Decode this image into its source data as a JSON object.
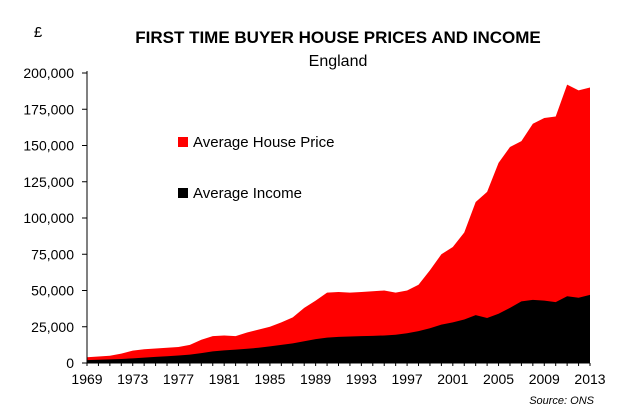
{
  "chart_data": {
    "type": "area",
    "title": "FIRST TIME BUYER HOUSE PRICES AND INCOME",
    "subtitle": "England",
    "y_unit": "£",
    "source": "Source: ONS",
    "xlim": [
      1969,
      2013
    ],
    "ylim": [
      0,
      200000
    ],
    "x_ticks": [
      "1969",
      "1973",
      "1977",
      "1981",
      "1985",
      "1989",
      "1993",
      "1997",
      "2001",
      "2005",
      "2009",
      "2013"
    ],
    "y_ticks": [
      "0",
      "25,000",
      "50,000",
      "75,000",
      "100,000",
      "125,000",
      "150,000",
      "175,000",
      "200,000"
    ],
    "grid": false,
    "legend_position": "upper-left inside plot",
    "x": [
      1969,
      1970,
      1971,
      1972,
      1973,
      1974,
      1975,
      1976,
      1977,
      1978,
      1979,
      1980,
      1981,
      1982,
      1983,
      1984,
      1985,
      1986,
      1987,
      1988,
      1989,
      1990,
      1991,
      1992,
      1993,
      1994,
      1995,
      1996,
      1997,
      1998,
      1999,
      2000,
      2001,
      2002,
      2003,
      2004,
      2005,
      2006,
      2007,
      2008,
      2009,
      2010,
      2011,
      2012,
      2013
    ],
    "series": [
      {
        "name": "Average House Price",
        "color": "#ff0000",
        "values": [
          4000,
          4500,
          5000,
          6500,
          8500,
          9500,
          10000,
          10500,
          11000,
          12500,
          16000,
          18500,
          19000,
          18500,
          21000,
          23000,
          25000,
          28000,
          31500,
          38000,
          43000,
          48500,
          49000,
          48500,
          49000,
          49500,
          50000,
          48500,
          50000,
          54000,
          64000,
          75000,
          80000,
          90000,
          111000,
          118000,
          138000,
          149000,
          153000,
          165000,
          169000,
          170000,
          192000,
          188000,
          190000
        ]
      },
      {
        "name": "Average Income",
        "color": "#000000",
        "values": [
          2000,
          2200,
          2500,
          2800,
          3200,
          3700,
          4200,
          4700,
          5200,
          5800,
          6800,
          8000,
          8700,
          9200,
          9800,
          10500,
          11500,
          12500,
          13500,
          15000,
          16500,
          17500,
          18000,
          18300,
          18500,
          18700,
          19000,
          19500,
          20500,
          22000,
          24000,
          26500,
          28000,
          30000,
          33000,
          31000,
          34000,
          38000,
          42500,
          43500,
          43000,
          42000,
          46000,
          45000,
          47000
        ]
      }
    ]
  }
}
